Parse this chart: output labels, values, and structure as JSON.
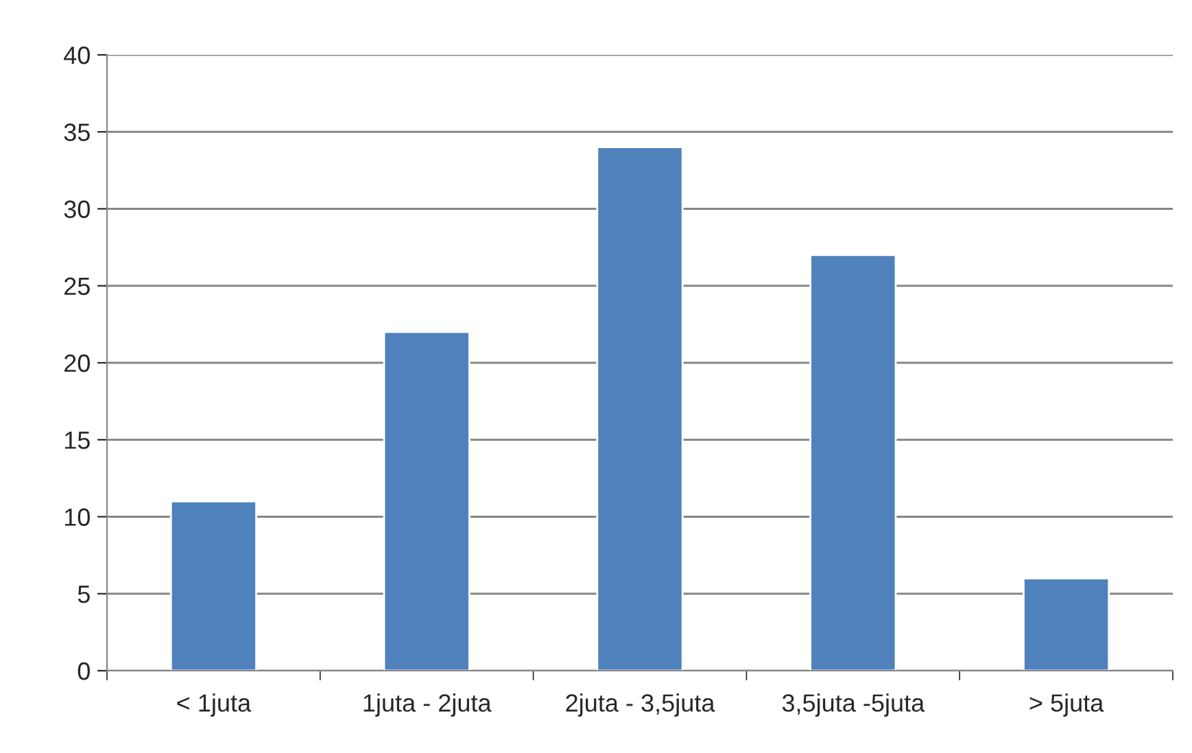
{
  "chart_data": {
    "type": "bar",
    "categories": [
      "< 1juta",
      "1juta - 2juta",
      "2juta - 3,5juta",
      "3,5juta -5juta",
      "> 5juta"
    ],
    "values": [
      11,
      22,
      34,
      27,
      6
    ],
    "color": "#4f81bd",
    "ylim": [
      0,
      40
    ],
    "yticks": [
      0,
      5,
      10,
      15,
      20,
      25,
      30,
      35,
      40
    ],
    "grid": "y",
    "legend": false
  }
}
